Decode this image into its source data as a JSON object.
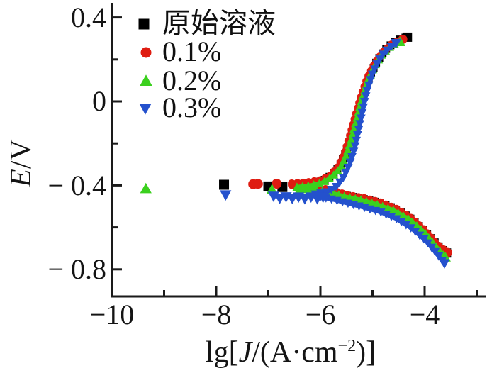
{
  "chart_data": {
    "type": "scatter",
    "description": "Potentiodynamic polarization (Tafel) curves: potential E/V versus logarithm of current density lg[J/(A·cm−2)] for the original solution and three inhibitor concentrations",
    "axis": {
      "ylabel_parts": {
        "italic": "E",
        "rest": "/V"
      },
      "xlabel_parts": {
        "prefix": "lg[",
        "italic": "J",
        "mid": "/(A·cm",
        "sup": "−2",
        "suffix": ")]"
      },
      "xlim": [
        -10,
        -2.83
      ],
      "ylim": [
        -0.93,
        0.47
      ],
      "grid": false,
      "y_ticks": [
        {
          "label": "0.4",
          "value": 0.4
        },
        {
          "label": "0",
          "value": 0.0
        },
        {
          "label": "− 0.4",
          "value": -0.4
        },
        {
          "label": "− 0.8",
          "value": -0.8
        }
      ],
      "y_minor": [
        0.2,
        -0.2,
        -0.6
      ],
      "x_ticks": [
        {
          "label": "−10",
          "value": -10
        },
        {
          "label": "−8",
          "value": -8
        },
        {
          "label": "−6",
          "value": -6
        },
        {
          "label": "−4",
          "value": -4
        }
      ],
      "x_minor": [
        -9,
        -7,
        -5,
        -3
      ]
    },
    "legend": [
      {
        "label": "原始溶液",
        "marker": "square",
        "color": "#000000"
      },
      {
        "label": "0.1%",
        "marker": "circle",
        "color": "#df1c11"
      },
      {
        "label": "0.2%",
        "marker": "triangle-up",
        "color": "#3bd01e"
      },
      {
        "label": "0.3%",
        "marker": "triangle-down",
        "color": "#2451cd"
      }
    ],
    "legend_position": "upper-left-inside",
    "series": [
      {
        "name": "原始溶液",
        "color": "#000000",
        "marker": "square",
        "ecorr": -0.4,
        "scatter": [
          [
            -7.85,
            -0.397
          ],
          [
            -7.0,
            -0.405
          ],
          [
            -6.73,
            -0.408
          ]
        ],
        "anodic": [
          [
            -6.45,
            -0.398
          ],
          [
            -6.15,
            -0.39
          ],
          [
            -5.95,
            -0.378
          ],
          [
            -5.78,
            -0.352
          ],
          [
            -5.63,
            -0.308
          ],
          [
            -5.52,
            -0.245
          ],
          [
            -5.41,
            -0.16
          ],
          [
            -5.3,
            -0.063
          ],
          [
            -5.19,
            0.03
          ],
          [
            -5.06,
            0.12
          ],
          [
            -4.92,
            0.19
          ],
          [
            -4.76,
            0.245
          ],
          [
            -4.58,
            0.283
          ],
          [
            -4.4,
            0.303
          ],
          [
            -4.33,
            0.306
          ]
        ],
        "cathodic": [
          [
            -6.45,
            -0.406
          ],
          [
            -6.1,
            -0.416
          ],
          [
            -5.85,
            -0.427
          ],
          [
            -5.55,
            -0.447
          ],
          [
            -5.2,
            -0.463
          ],
          [
            -4.9,
            -0.481
          ],
          [
            -4.6,
            -0.508
          ],
          [
            -4.3,
            -0.552
          ],
          [
            -4.0,
            -0.617
          ],
          [
            -3.76,
            -0.684
          ],
          [
            -3.58,
            -0.722
          ]
        ]
      },
      {
        "name": "0.1%",
        "color": "#df1c11",
        "marker": "circle",
        "ecorr": -0.395,
        "scatter": [
          [
            -7.29,
            -0.394
          ],
          [
            -7.2,
            -0.393
          ],
          [
            -6.84,
            -0.392
          ]
        ],
        "anodic": [
          [
            -6.55,
            -0.39
          ],
          [
            -6.25,
            -0.385
          ],
          [
            -6.0,
            -0.375
          ],
          [
            -5.82,
            -0.355
          ],
          [
            -5.66,
            -0.312
          ],
          [
            -5.54,
            -0.25
          ],
          [
            -5.44,
            -0.168
          ],
          [
            -5.33,
            -0.07
          ],
          [
            -5.22,
            0.025
          ],
          [
            -5.1,
            0.112
          ],
          [
            -4.96,
            0.18
          ],
          [
            -4.8,
            0.235
          ],
          [
            -4.62,
            0.275
          ],
          [
            -4.46,
            0.293
          ],
          [
            -4.42,
            0.296
          ]
        ],
        "cathodic": [
          [
            -6.55,
            -0.398
          ],
          [
            -6.2,
            -0.406
          ],
          [
            -5.95,
            -0.414
          ],
          [
            -5.7,
            -0.43
          ],
          [
            -5.45,
            -0.447
          ],
          [
            -5.15,
            -0.461
          ],
          [
            -4.85,
            -0.48
          ],
          [
            -4.55,
            -0.51
          ],
          [
            -4.27,
            -0.553
          ],
          [
            -4.0,
            -0.613
          ],
          [
            -3.76,
            -0.681
          ],
          [
            -3.56,
            -0.72
          ]
        ]
      },
      {
        "name": "0.2%",
        "color": "#3bd01e",
        "marker": "triangle-up",
        "ecorr": -0.41,
        "scatter": [
          [
            -9.35,
            -0.415
          ],
          [
            -6.93,
            -0.42
          ]
        ],
        "anodic": [
          [
            -6.45,
            -0.408
          ],
          [
            -6.18,
            -0.4
          ],
          [
            -5.97,
            -0.388
          ],
          [
            -5.79,
            -0.362
          ],
          [
            -5.62,
            -0.318
          ],
          [
            -5.5,
            -0.255
          ],
          [
            -5.4,
            -0.175
          ],
          [
            -5.3,
            -0.08
          ],
          [
            -5.2,
            0.015
          ],
          [
            -5.09,
            0.1
          ],
          [
            -4.96,
            0.17
          ],
          [
            -4.81,
            0.228
          ],
          [
            -4.64,
            0.266
          ],
          [
            -4.52,
            0.281
          ],
          [
            -4.47,
            0.284
          ]
        ],
        "cathodic": [
          [
            -6.4,
            -0.417
          ],
          [
            -6.05,
            -0.426
          ],
          [
            -5.8,
            -0.435
          ],
          [
            -5.5,
            -0.455
          ],
          [
            -5.2,
            -0.47
          ],
          [
            -4.9,
            -0.492
          ],
          [
            -4.6,
            -0.518
          ],
          [
            -4.3,
            -0.56
          ],
          [
            -4.0,
            -0.625
          ],
          [
            -3.78,
            -0.692
          ],
          [
            -3.6,
            -0.742
          ]
        ]
      },
      {
        "name": "0.3%",
        "color": "#2451cd",
        "marker": "triangle-down",
        "ecorr": -0.43,
        "scatter": [
          [
            -7.82,
            -0.446
          ],
          [
            -6.9,
            -0.452
          ],
          [
            -6.78,
            -0.462
          ],
          [
            -6.66,
            -0.455
          ],
          [
            -6.54,
            -0.463
          ],
          [
            -6.42,
            -0.456
          ],
          [
            -6.3,
            -0.464
          ],
          [
            -6.18,
            -0.456
          ],
          [
            -6.06,
            -0.464
          ],
          [
            -5.95,
            -0.457
          ]
        ],
        "anodic": [
          [
            -6.1,
            -0.442
          ],
          [
            -5.86,
            -0.43
          ],
          [
            -5.69,
            -0.405
          ],
          [
            -5.55,
            -0.36
          ],
          [
            -5.44,
            -0.3
          ],
          [
            -5.35,
            -0.23
          ],
          [
            -5.27,
            -0.14
          ],
          [
            -5.19,
            -0.045
          ],
          [
            -5.11,
            0.045
          ],
          [
            -5.01,
            0.125
          ],
          [
            -4.9,
            0.185
          ],
          [
            -4.79,
            0.228
          ],
          [
            -4.66,
            0.258
          ],
          [
            -4.55,
            0.277
          ]
        ],
        "cathodic": [
          [
            -6.0,
            -0.455
          ],
          [
            -5.75,
            -0.468
          ],
          [
            -5.45,
            -0.487
          ],
          [
            -5.15,
            -0.506
          ],
          [
            -4.85,
            -0.527
          ],
          [
            -4.55,
            -0.558
          ],
          [
            -4.25,
            -0.605
          ],
          [
            -3.98,
            -0.663
          ],
          [
            -3.77,
            -0.725
          ],
          [
            -3.62,
            -0.772
          ]
        ]
      }
    ]
  }
}
